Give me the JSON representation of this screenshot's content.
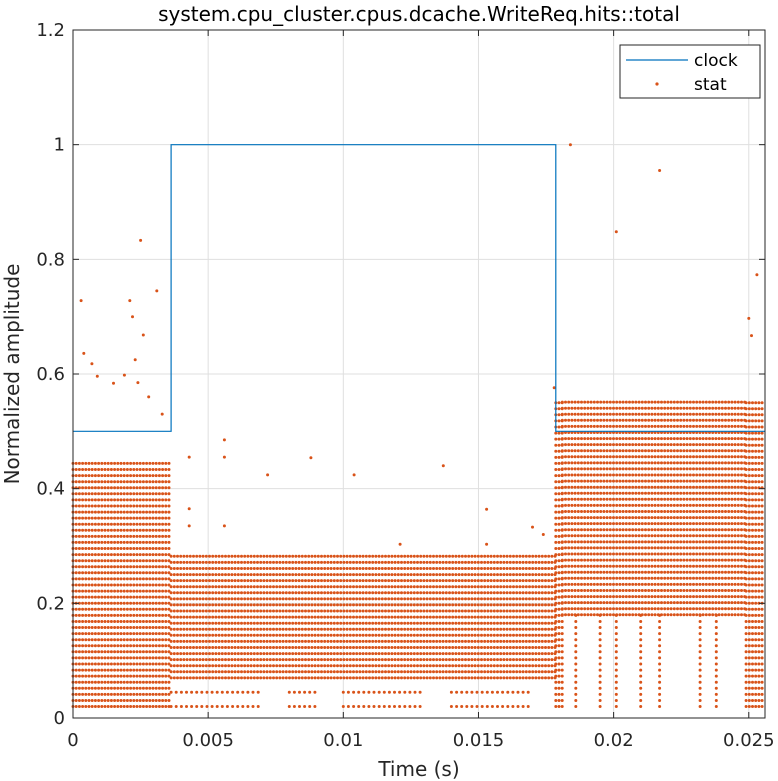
{
  "chart_data": {
    "type": "line",
    "title": "system.cpu_cluster.cpus.dcache.WriteReq.hits::total",
    "xlabel": "Time (s)",
    "ylabel": "Normalized amplitude",
    "xlim": [
      0,
      0.0256
    ],
    "ylim": [
      0,
      1.2
    ],
    "x_ticks": [
      0,
      0.005,
      0.01,
      0.015,
      0.02,
      0.025
    ],
    "x_tick_labels": [
      "0",
      "0.005",
      "0.01",
      "0.015",
      "0.02",
      "0.025"
    ],
    "y_ticks": [
      0,
      0.2,
      0.4,
      0.6,
      0.8,
      1.0,
      1.2
    ],
    "y_tick_labels": [
      "0",
      "0.2",
      "0.4",
      "0.6",
      "0.8",
      "1",
      "1.2"
    ],
    "grid": true,
    "legend_position": "top-right",
    "colors": {
      "clock": "#0072bd",
      "stat": "#d95319"
    },
    "series": [
      {
        "name": "clock",
        "style": "line",
        "x": [
          0,
          0.00363,
          0.00363,
          0.01786,
          0.01786,
          0.0256
        ],
        "y": [
          0.5,
          0.5,
          1.0,
          1.0,
          0.5,
          0.5
        ]
      },
      {
        "name": "stat",
        "style": "markers",
        "bands": [
          {
            "x_range": [
              0,
              0.00363
            ],
            "y_range": [
              0.02,
              0.45
            ],
            "step": 0.0106,
            "x_step": 6e-05
          },
          {
            "x_range": [
              0.00363,
              0.01786
            ],
            "y_range": [
              0.07,
              0.285
            ],
            "step": 0.0106,
            "x_step": 6e-05
          },
          {
            "x_range": [
              0.01786,
              0.0181
            ],
            "y_range": [
              0.02,
              0.56
            ],
            "step": 0.0106,
            "x_step": 6e-05
          },
          {
            "x_range": [
              0.0181,
              0.0249
            ],
            "y_range": [
              0.18,
              0.56
            ],
            "step": 0.0106,
            "x_step": 6e-05
          },
          {
            "x_range": [
              0.0249,
              0.0256
            ],
            "y_range": [
              0.02,
              0.56
            ],
            "step": 0.0106,
            "x_step": 6e-05
          }
        ],
        "bottom_row_y": [
          0.02,
          0.045
        ],
        "bottom_row_segments": [
          [
            0.00363,
            0.007
          ],
          [
            0.008,
            0.009
          ],
          [
            0.01,
            0.013
          ],
          [
            0.014,
            0.017
          ]
        ],
        "columns": [
          {
            "x": 0.0186,
            "y_range": [
              0.02,
              0.18
            ]
          },
          {
            "x": 0.0195,
            "y_range": [
              0.02,
              0.18
            ]
          },
          {
            "x": 0.0201,
            "y_range": [
              0.02,
              0.18
            ]
          },
          {
            "x": 0.021,
            "y_range": [
              0.02,
              0.18
            ]
          },
          {
            "x": 0.0217,
            "y_range": [
              0.02,
              0.18
            ]
          },
          {
            "x": 0.0232,
            "y_range": [
              0.02,
              0.18
            ]
          },
          {
            "x": 0.0238,
            "y_range": [
              0.02,
              0.18
            ]
          }
        ],
        "outliers": [
          [
            0.0003,
            0.728
          ],
          [
            0.0004,
            0.636
          ],
          [
            0.0007,
            0.618
          ],
          [
            0.0009,
            0.596
          ],
          [
            0.0015,
            0.584
          ],
          [
            0.0019,
            0.598
          ],
          [
            0.0021,
            0.728
          ],
          [
            0.0022,
            0.7
          ],
          [
            0.0023,
            0.625
          ],
          [
            0.0024,
            0.585
          ],
          [
            0.0025,
            0.833
          ],
          [
            0.0026,
            0.668
          ],
          [
            0.0028,
            0.56
          ],
          [
            0.0031,
            0.745
          ],
          [
            0.0033,
            0.53
          ],
          [
            0.0043,
            0.455
          ],
          [
            0.0043,
            0.365
          ],
          [
            0.0043,
            0.335
          ],
          [
            0.0056,
            0.485
          ],
          [
            0.0056,
            0.455
          ],
          [
            0.0056,
            0.335
          ],
          [
            0.0072,
            0.424
          ],
          [
            0.0088,
            0.454
          ],
          [
            0.0104,
            0.424
          ],
          [
            0.0121,
            0.303
          ],
          [
            0.0137,
            0.44
          ],
          [
            0.0153,
            0.364
          ],
          [
            0.0153,
            0.303
          ],
          [
            0.017,
            0.333
          ],
          [
            0.0174,
            0.32
          ],
          [
            0.0178,
            0.576
          ],
          [
            0.0184,
            1.0
          ],
          [
            0.0201,
            0.848
          ],
          [
            0.0217,
            0.955
          ],
          [
            0.025,
            0.697
          ],
          [
            0.0251,
            0.667
          ],
          [
            0.0253,
            0.773
          ]
        ]
      }
    ]
  }
}
